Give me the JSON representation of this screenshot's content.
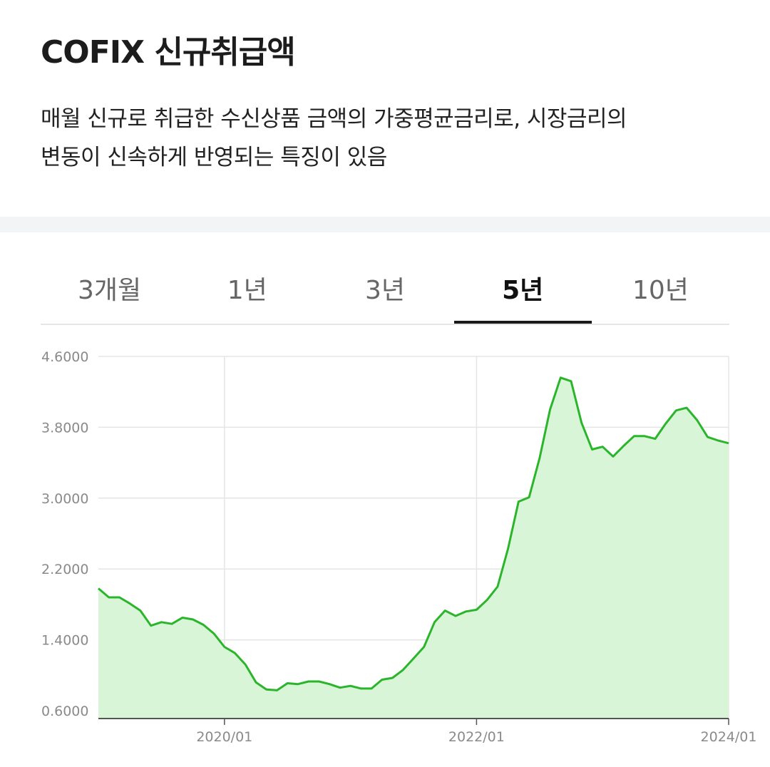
{
  "header": {
    "title": "COFIX 신규취급액",
    "description_line1": "매월 신규로 취급한 수신상품 금액의 가중평균금리로, 시장금리의",
    "description_line2": "변동이 신속하게 반영되는 특징이 있음"
  },
  "tabs": [
    {
      "label": "3개월",
      "active": false
    },
    {
      "label": "1년",
      "active": false
    },
    {
      "label": "3년",
      "active": false
    },
    {
      "label": "5년",
      "active": true
    },
    {
      "label": "10년",
      "active": false
    }
  ],
  "colors": {
    "line": "#2bb52b",
    "fill": "#d8f5d8",
    "grid": "#e5e5e5"
  },
  "chart_data": {
    "type": "area",
    "title": "",
    "xlabel": "",
    "ylabel": "",
    "ylim": [
      0.6,
      4.6
    ],
    "yticks": [
      "4.6000",
      "3.8000",
      "3.0000",
      "2.2000",
      "1.4000",
      "0.6000"
    ],
    "xticks": [
      {
        "label": "2020/01",
        "month": 12
      },
      {
        "label": "2022/01",
        "month": 36
      },
      {
        "label": "2024/01",
        "month": 60
      }
    ],
    "start_month": "2019/01",
    "grid": true,
    "legend": "none",
    "series": [
      {
        "values": [
          1.98,
          1.88,
          1.88,
          1.81,
          1.73,
          1.56,
          1.6,
          1.58,
          1.65,
          1.63,
          1.57,
          1.47,
          1.32,
          1.25,
          1.12,
          0.92,
          0.84,
          0.83,
          0.91,
          0.9,
          0.93,
          0.93,
          0.9,
          0.86,
          0.88,
          0.85,
          0.85,
          0.95,
          0.97,
          1.06,
          1.19,
          1.32,
          1.6,
          1.73,
          1.67,
          1.72,
          1.74,
          1.85,
          2.0,
          2.43,
          2.96,
          3.01,
          3.45,
          4.0,
          4.36,
          4.32,
          3.85,
          3.55,
          3.58,
          3.47,
          3.59,
          3.7,
          3.7,
          3.67,
          3.84,
          3.99,
          4.02,
          3.88,
          3.69,
          3.65,
          3.62
        ]
      }
    ]
  }
}
